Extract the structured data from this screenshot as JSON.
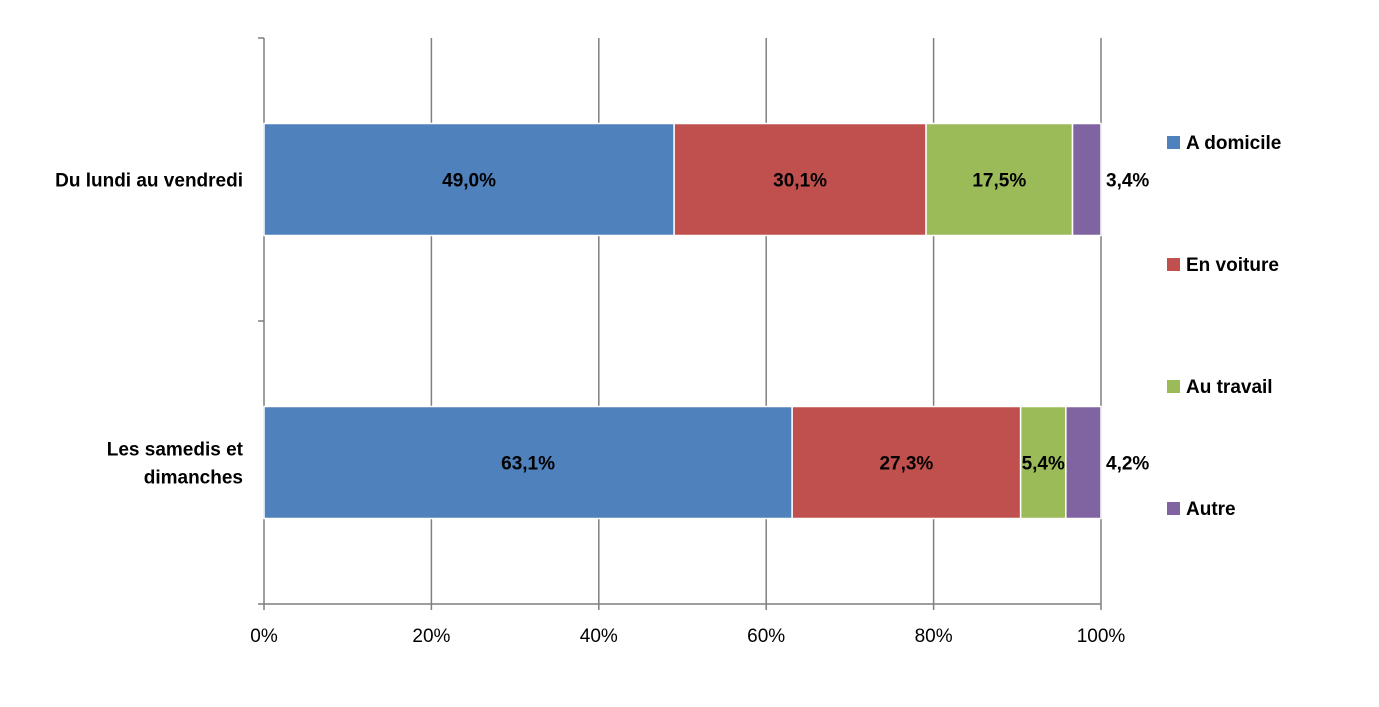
{
  "chart_data": {
    "type": "bar",
    "orientation": "horizontal",
    "stacked": true,
    "categories": [
      "Du lundi au vendredi",
      "Les samedis et dimanches"
    ],
    "category_lines": [
      [
        "Du lundi au vendredi"
      ],
      [
        "Les samedis et",
        "dimanches"
      ]
    ],
    "series": [
      {
        "name": "A domicile",
        "color": "#4F81BD",
        "values": [
          49.0,
          63.1
        ],
        "labels": [
          "49,0%",
          "63,1%"
        ]
      },
      {
        "name": "En voiture",
        "color": "#C0504D",
        "values": [
          30.1,
          27.3
        ],
        "labels": [
          "30,1%",
          "27,3%"
        ]
      },
      {
        "name": "Au travail",
        "color": "#9BBB59",
        "values": [
          17.5,
          5.4
        ],
        "labels": [
          "17,5%",
          "5,4%"
        ]
      },
      {
        "name": "Autre",
        "color": "#8064A2",
        "values": [
          3.4,
          4.2
        ],
        "labels": [
          "3,4%",
          "4,2%"
        ]
      }
    ],
    "xlim": [
      0,
      100
    ],
    "xticks": [
      "0%",
      "20%",
      "40%",
      "60%",
      "80%",
      "100%"
    ],
    "grid": true,
    "legend": "right",
    "title": "",
    "xlabel": "",
    "ylabel": ""
  }
}
